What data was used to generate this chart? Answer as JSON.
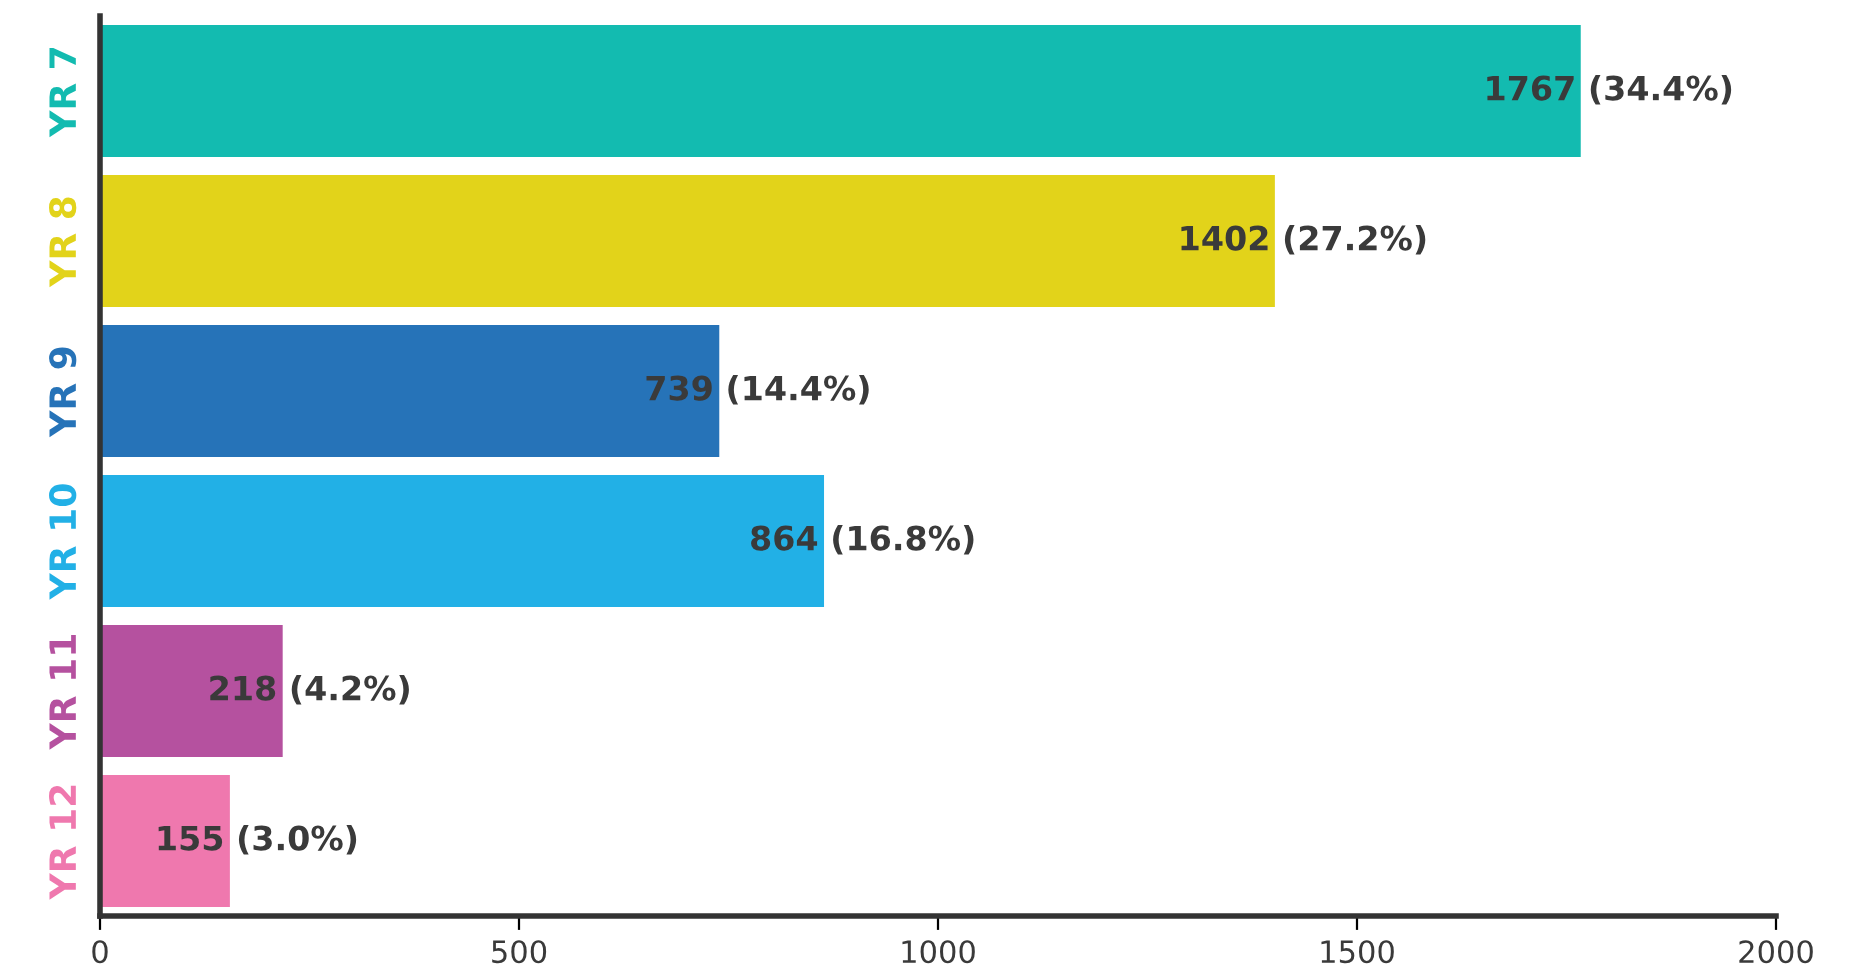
{
  "chart_data": {
    "type": "bar",
    "orientation": "horizontal",
    "categories": [
      "YR 7",
      "YR 8",
      "YR 9",
      "YR 10",
      "YR 11",
      "YR 12"
    ],
    "values": [
      1767,
      1402,
      739,
      864,
      218,
      155
    ],
    "colors": [
      "#13bbb0",
      "#e2d31a",
      "#2673b8",
      "#22b0e6",
      "#b5519f",
      "#ef78ae"
    ],
    "value_labels": [
      "1767 (34.4%)",
      "1402 (27.2%)",
      "739 (14.4%)",
      "864 (16.8%)",
      "218 (4.2%)",
      "155 (3.0%)"
    ],
    "xlim": [
      0,
      2000
    ],
    "xticks": [
      0,
      500,
      1000,
      1500,
      2000
    ],
    "grid": false,
    "legend": false
  }
}
